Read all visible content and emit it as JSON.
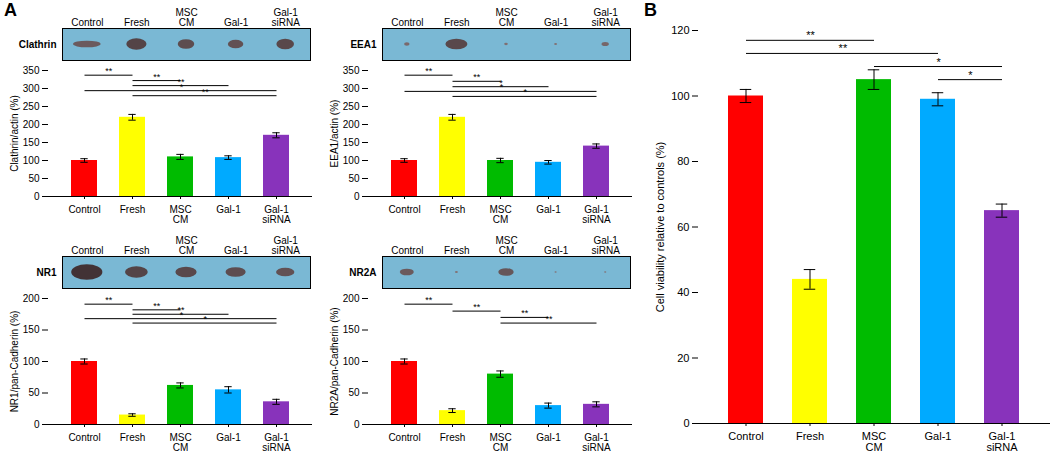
{
  "chart_data": [
    {
      "type": "blot",
      "title": "A",
      "ylabel": "Clathrin",
      "tick_labels": "x",
      "categories": [
        "Control",
        "Fresh",
        "MSC\nCM",
        "Gal-1",
        "Gal-1\nsiRNA"
      ],
      "values": [
        0.35,
        0.6,
        0.5,
        0.45,
        0.55
      ],
      "widths": [
        0.75,
        0.55,
        0.45,
        0.42,
        0.48
      ],
      "color": "#7ab8d4"
    },
    {
      "type": "bar",
      "grid": false,
      "categories": [
        "Control",
        "Fresh",
        "MSC\nCM",
        "Gal-1",
        "Gal-1\nsiRNA"
      ],
      "values": [
        100,
        220,
        110,
        108,
        170
      ],
      "errors": [
        5,
        8,
        7,
        5,
        7
      ],
      "colors": [
        "#ff0000",
        "#ffff00",
        "#00bb00",
        "#00aaff",
        "#8833bb"
      ],
      "ylabel": "Clathrin/actin (%)",
      "ylim": [
        0,
        350
      ],
      "yticks": [
        0,
        50,
        100,
        150,
        200,
        250,
        300,
        350
      ],
      "annotations": [
        {
          "from": "Control",
          "to": "Fresh",
          "y": 337,
          "text": "**"
        },
        {
          "from": "Fresh",
          "to": "MSC\nCM",
          "y": 322,
          "text": "**"
        },
        {
          "from": "Fresh",
          "to": "Gal-1",
          "y": 308,
          "text": "**"
        },
        {
          "from": "Control",
          "to": "Gal-1\nsiRNA",
          "y": 294,
          "text": "*"
        },
        {
          "from": "Fresh",
          "to": "Gal-1\nsiRNA",
          "y": 280,
          "text": "**"
        }
      ]
    },
    {
      "type": "blot",
      "ylabel": "EEA1",
      "tick_labels": "x",
      "categories": [
        "Control",
        "Fresh",
        "MSC\nCM",
        "Gal-1",
        "Gal-1\nsiRNA"
      ],
      "values": [
        0.18,
        0.55,
        0.12,
        0.1,
        0.22
      ],
      "widths": [
        0.15,
        0.6,
        0.1,
        0.08,
        0.2
      ],
      "color": "#7ab8d4"
    },
    {
      "type": "bar",
      "grid": false,
      "categories": [
        "Control",
        "Fresh",
        "MSC\nCM",
        "Gal-1",
        "Gal-1\nsiRNA"
      ],
      "values": [
        100,
        220,
        100,
        95,
        140
      ],
      "errors": [
        5,
        8,
        6,
        5,
        6
      ],
      "colors": [
        "#ff0000",
        "#ffff00",
        "#00bb00",
        "#00aaff",
        "#8833bb"
      ],
      "ylabel": "EEA1/actin (%)",
      "ylim": [
        0,
        350
      ],
      "yticks": [
        0,
        50,
        100,
        150,
        200,
        250,
        300,
        350
      ],
      "annotations": [
        {
          "from": "Control",
          "to": "Fresh",
          "y": 337,
          "text": "**"
        },
        {
          "from": "Fresh",
          "to": "MSC\nCM",
          "y": 320,
          "text": "**"
        },
        {
          "from": "Fresh",
          "to": "Gal-1",
          "y": 305,
          "text": "*"
        },
        {
          "from": "Control",
          "to": "Gal-1\nsiRNA",
          "y": 292,
          "text": "*"
        },
        {
          "from": "Fresh",
          "to": "Gal-1\nsiRNA",
          "y": 278,
          "text": "*"
        }
      ]
    },
    {
      "type": "blot",
      "ylabel": "NR1",
      "tick_labels": "x",
      "categories": [
        "Control",
        "Fresh",
        "MSC\nCM",
        "Gal-1",
        "Gal-1\nsiRNA"
      ],
      "values": [
        0.8,
        0.6,
        0.55,
        0.5,
        0.45
      ],
      "widths": [
        0.85,
        0.62,
        0.58,
        0.55,
        0.5
      ],
      "color": "#7ab8d4"
    },
    {
      "type": "bar",
      "grid": false,
      "categories": [
        "Control",
        "Fresh",
        "MSC\nCM",
        "Gal-1",
        "Gal-1\nsiRNA"
      ],
      "values": [
        100,
        15,
        62,
        55,
        36
      ],
      "errors": [
        4,
        2,
        4,
        5,
        4
      ],
      "colors": [
        "#ff0000",
        "#ffff00",
        "#00bb00",
        "#00aaff",
        "#8833bb"
      ],
      "ylabel": "NR1/pan-Cadherin (%)",
      "ylim": [
        0,
        200
      ],
      "yticks": [
        0,
        50,
        100,
        150,
        200
      ],
      "annotations": [
        {
          "from": "Control",
          "to": "Fresh",
          "y": 191,
          "text": "**"
        },
        {
          "from": "Fresh",
          "to": "MSC\nCM",
          "y": 182,
          "text": "**"
        },
        {
          "from": "Fresh",
          "to": "Gal-1",
          "y": 175,
          "text": "**"
        },
        {
          "from": "Control",
          "to": "Gal-1\nsiRNA",
          "y": 168,
          "text": "*"
        },
        {
          "from": "Fresh",
          "to": "Gal-1\nsiRNA",
          "y": 161,
          "text": "*"
        }
      ]
    },
    {
      "type": "blot",
      "ylabel": "NR2A",
      "tick_labels": "x",
      "categories": [
        "Control",
        "Fresh",
        "MSC\nCM",
        "Gal-1",
        "Gal-1\nsiRNA"
      ],
      "values": [
        0.35,
        0.1,
        0.4,
        0.08,
        0.08
      ],
      "widths": [
        0.38,
        0.08,
        0.42,
        0.06,
        0.06
      ],
      "color": "#7ab8d4"
    },
    {
      "type": "bar",
      "grid": false,
      "categories": [
        "Control",
        "Fresh",
        "MSC\nCM",
        "Gal-1",
        "Gal-1\nsiRNA"
      ],
      "values": [
        100,
        22,
        80,
        30,
        32
      ],
      "errors": [
        4,
        3,
        5,
        4,
        4
      ],
      "colors": [
        "#ff0000",
        "#ffff00",
        "#00bb00",
        "#00aaff",
        "#8833bb"
      ],
      "ylabel": "NR2A/pan-Cadherin (%)",
      "ylim": [
        0,
        200
      ],
      "yticks": [
        0,
        50,
        100,
        150,
        200
      ],
      "annotations": [
        {
          "from": "Control",
          "to": "Fresh",
          "y": 191,
          "text": "**"
        },
        {
          "from": "Fresh",
          "to": "MSC\nCM",
          "y": 180,
          "text": "**"
        },
        {
          "from": "MSC\nCM",
          "to": "Gal-1",
          "y": 170,
          "text": "**"
        },
        {
          "from": "MSC\nCM",
          "to": "Gal-1\nsiRNA",
          "y": 161,
          "text": "**"
        }
      ]
    },
    {
      "type": "bar",
      "title": "B",
      "grid": false,
      "categories": [
        "Control",
        "Fresh",
        "MSC\nCM",
        "Gal-1",
        "Gal-1\nsiRNA"
      ],
      "values": [
        100,
        44,
        105,
        99,
        65
      ],
      "errors": [
        2,
        3,
        3,
        2,
        2
      ],
      "colors": [
        "#ff0000",
        "#ffff00",
        "#00bb00",
        "#00aaff",
        "#8833bb"
      ],
      "ylabel": "Cell viability relative to controls (%)",
      "ylim": [
        0,
        120
      ],
      "yticks": [
        0,
        20,
        40,
        60,
        80,
        100,
        120
      ],
      "annotations": [
        {
          "from": "Control",
          "to": "MSC\nCM",
          "y": 117,
          "text": "**"
        },
        {
          "from": "Control",
          "to": "Gal-1",
          "y": 113,
          "text": "**"
        },
        {
          "from": "MSC\nCM",
          "to": "Gal-1\nsiRNA",
          "y": 109,
          "text": "*"
        },
        {
          "from": "Gal-1",
          "to": "Gal-1\nsiRNA",
          "y": 105,
          "text": "*"
        }
      ]
    }
  ]
}
